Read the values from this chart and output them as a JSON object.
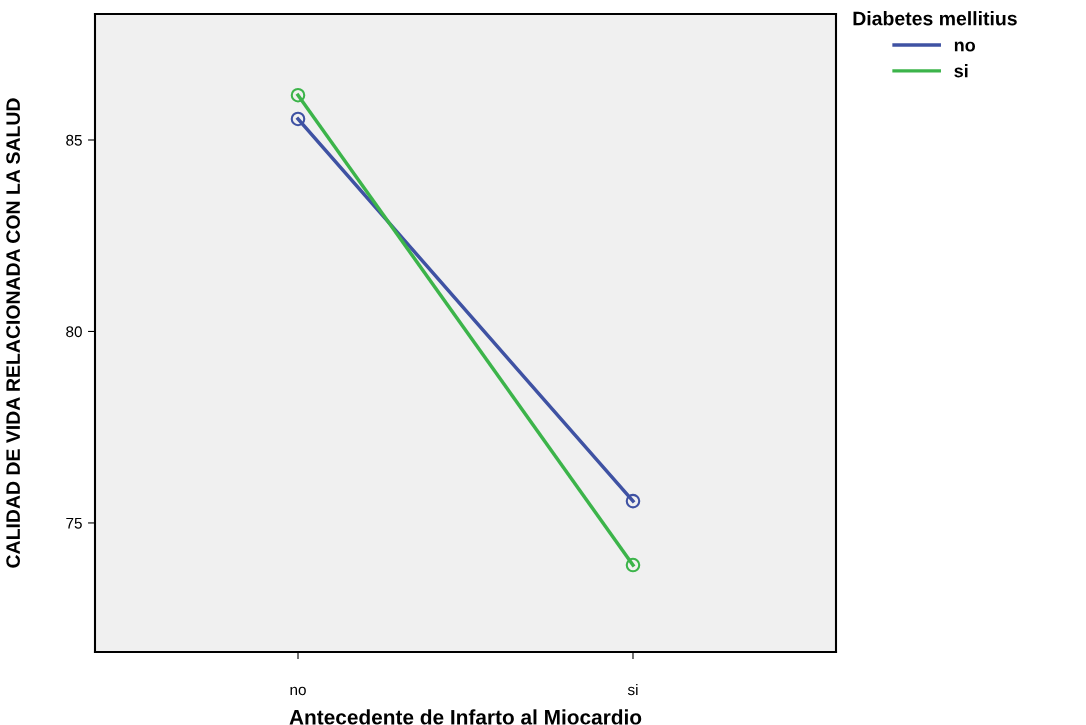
{
  "chart_data": {
    "type": "line",
    "xlabel": "Antecedente de Infarto al Miocardio",
    "ylabel": "CALIDAD DE VIDA RELACIONADA CON LA SALUD",
    "legend_title": "Diabetes mellitius",
    "categories": [
      "no",
      "si"
    ],
    "series": [
      {
        "name": "no",
        "color": "#3f52a3",
        "values": [
          85.55,
          75.57
        ]
      },
      {
        "name": "si",
        "color": "#3cb44a",
        "values": [
          86.17,
          73.9
        ]
      }
    ],
    "ylim": [
      71.63,
      88.29
    ],
    "yticks": [
      75,
      80,
      85
    ],
    "marker": "circle",
    "line_style": "solid",
    "grid": false,
    "legend": "top right"
  }
}
